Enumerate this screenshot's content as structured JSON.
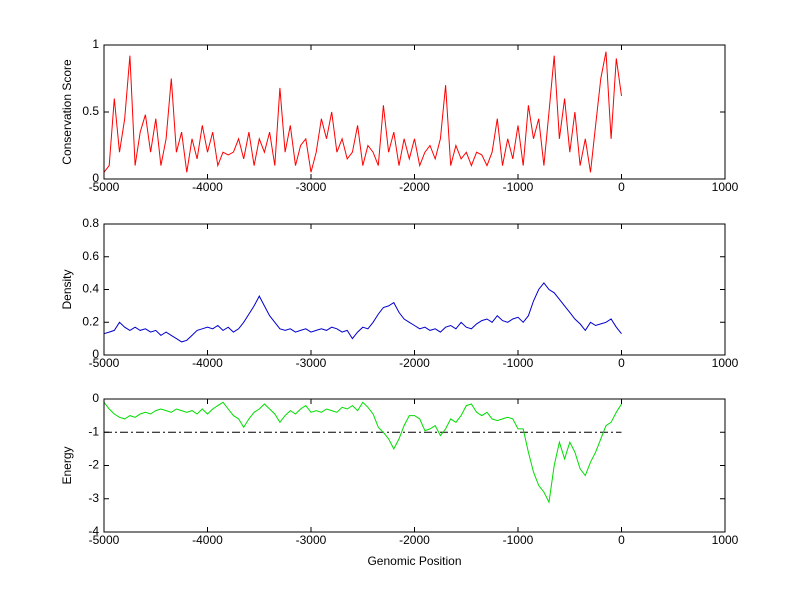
{
  "chart_data": [
    {
      "type": "line",
      "ylabel": "Conservation Score",
      "color": "#ff0000",
      "x": [
        -5000,
        -4950,
        -4900,
        -4850,
        -4800,
        -4750,
        -4700,
        -4650,
        -4600,
        -4550,
        -4500,
        -4450,
        -4400,
        -4350,
        -4300,
        -4250,
        -4200,
        -4150,
        -4100,
        -4050,
        -4000,
        -3950,
        -3900,
        -3850,
        -3800,
        -3750,
        -3700,
        -3650,
        -3600,
        -3550,
        -3500,
        -3450,
        -3400,
        -3350,
        -3300,
        -3250,
        -3200,
        -3150,
        -3100,
        -3050,
        -3000,
        -2950,
        -2900,
        -2850,
        -2800,
        -2750,
        -2700,
        -2650,
        -2600,
        -2550,
        -2500,
        -2450,
        -2400,
        -2350,
        -2300,
        -2250,
        -2200,
        -2150,
        -2100,
        -2050,
        -2000,
        -1950,
        -1900,
        -1850,
        -1800,
        -1750,
        -1700,
        -1650,
        -1600,
        -1550,
        -1500,
        -1450,
        -1400,
        -1350,
        -1300,
        -1250,
        -1200,
        -1150,
        -1100,
        -1050,
        -1000,
        -950,
        -900,
        -850,
        -800,
        -750,
        -700,
        -650,
        -600,
        -550,
        -500,
        -450,
        -400,
        -350,
        -300,
        -250,
        -200,
        -150,
        -100,
        -50,
        0
      ],
      "values": [
        0.05,
        0.1,
        0.6,
        0.2,
        0.45,
        0.92,
        0.1,
        0.35,
        0.48,
        0.2,
        0.45,
        0.1,
        0.3,
        0.75,
        0.2,
        0.35,
        0.05,
        0.3,
        0.15,
        0.4,
        0.2,
        0.35,
        0.1,
        0.2,
        0.18,
        0.2,
        0.3,
        0.15,
        0.35,
        0.1,
        0.3,
        0.2,
        0.35,
        0.1,
        0.68,
        0.2,
        0.4,
        0.1,
        0.25,
        0.3,
        0.05,
        0.2,
        0.45,
        0.3,
        0.5,
        0.2,
        0.3,
        0.15,
        0.2,
        0.4,
        0.1,
        0.25,
        0.2,
        0.1,
        0.55,
        0.2,
        0.35,
        0.1,
        0.3,
        0.15,
        0.3,
        0.1,
        0.2,
        0.25,
        0.15,
        0.3,
        0.7,
        0.1,
        0.25,
        0.15,
        0.2,
        0.1,
        0.2,
        0.18,
        0.1,
        0.2,
        0.45,
        0.1,
        0.3,
        0.15,
        0.4,
        0.1,
        0.55,
        0.3,
        0.45,
        0.1,
        0.5,
        0.92,
        0.3,
        0.6,
        0.2,
        0.5,
        0.1,
        0.3,
        0.05,
        0.4,
        0.75,
        0.95,
        0.3,
        0.9,
        0.62
      ],
      "xlim": [
        -5000,
        1000
      ],
      "xticks": [
        -5000,
        -4000,
        -3000,
        -2000,
        -1000,
        0,
        1000
      ],
      "ylim": [
        0,
        1
      ],
      "yticks": [
        0,
        0.5,
        1
      ]
    },
    {
      "type": "line",
      "ylabel": "Density",
      "color": "#0000cc",
      "x": [
        -5000,
        -4950,
        -4900,
        -4850,
        -4800,
        -4750,
        -4700,
        -4650,
        -4600,
        -4550,
        -4500,
        -4450,
        -4400,
        -4350,
        -4300,
        -4250,
        -4200,
        -4150,
        -4100,
        -4050,
        -4000,
        -3950,
        -3900,
        -3850,
        -3800,
        -3750,
        -3700,
        -3650,
        -3600,
        -3550,
        -3500,
        -3450,
        -3400,
        -3350,
        -3300,
        -3250,
        -3200,
        -3150,
        -3100,
        -3050,
        -3000,
        -2950,
        -2900,
        -2850,
        -2800,
        -2750,
        -2700,
        -2650,
        -2600,
        -2550,
        -2500,
        -2450,
        -2400,
        -2350,
        -2300,
        -2250,
        -2200,
        -2150,
        -2100,
        -2050,
        -2000,
        -1950,
        -1900,
        -1850,
        -1800,
        -1750,
        -1700,
        -1650,
        -1600,
        -1550,
        -1500,
        -1450,
        -1400,
        -1350,
        -1300,
        -1250,
        -1200,
        -1150,
        -1100,
        -1050,
        -1000,
        -950,
        -900,
        -850,
        -800,
        -750,
        -700,
        -650,
        -600,
        -550,
        -500,
        -450,
        -400,
        -350,
        -300,
        -250,
        -200,
        -150,
        -100,
        -50,
        0
      ],
      "values": [
        0.13,
        0.14,
        0.15,
        0.2,
        0.17,
        0.15,
        0.17,
        0.15,
        0.16,
        0.14,
        0.15,
        0.12,
        0.14,
        0.12,
        0.1,
        0.08,
        0.09,
        0.12,
        0.15,
        0.16,
        0.17,
        0.16,
        0.18,
        0.15,
        0.17,
        0.14,
        0.16,
        0.2,
        0.25,
        0.3,
        0.36,
        0.3,
        0.24,
        0.2,
        0.16,
        0.15,
        0.16,
        0.14,
        0.15,
        0.16,
        0.14,
        0.15,
        0.16,
        0.15,
        0.17,
        0.16,
        0.14,
        0.15,
        0.1,
        0.14,
        0.17,
        0.16,
        0.2,
        0.25,
        0.29,
        0.3,
        0.32,
        0.26,
        0.22,
        0.2,
        0.18,
        0.16,
        0.17,
        0.15,
        0.16,
        0.14,
        0.17,
        0.18,
        0.16,
        0.2,
        0.17,
        0.16,
        0.19,
        0.21,
        0.22,
        0.2,
        0.24,
        0.21,
        0.2,
        0.22,
        0.23,
        0.2,
        0.24,
        0.33,
        0.4,
        0.44,
        0.4,
        0.38,
        0.34,
        0.3,
        0.26,
        0.22,
        0.19,
        0.15,
        0.2,
        0.18,
        0.19,
        0.2,
        0.22,
        0.17,
        0.13
      ],
      "xlim": [
        -5000,
        1000
      ],
      "xticks": [
        -5000,
        -4000,
        -3000,
        -2000,
        -1000,
        0,
        1000
      ],
      "ylim": [
        0,
        0.8
      ],
      "yticks": [
        0,
        0.2,
        0.4,
        0.6,
        0.8
      ]
    },
    {
      "type": "line",
      "ylabel": "Energy",
      "xlabel": "Genomic Position",
      "color": "#00dd00",
      "x": [
        -5000,
        -4950,
        -4900,
        -4850,
        -4800,
        -4750,
        -4700,
        -4650,
        -4600,
        -4550,
        -4500,
        -4450,
        -4400,
        -4350,
        -4300,
        -4250,
        -4200,
        -4150,
        -4100,
        -4050,
        -4000,
        -3950,
        -3900,
        -3850,
        -3800,
        -3750,
        -3700,
        -3650,
        -3600,
        -3550,
        -3500,
        -3450,
        -3400,
        -3350,
        -3300,
        -3250,
        -3200,
        -3150,
        -3100,
        -3050,
        -3000,
        -2950,
        -2900,
        -2850,
        -2800,
        -2750,
        -2700,
        -2650,
        -2600,
        -2550,
        -2500,
        -2450,
        -2400,
        -2350,
        -2300,
        -2250,
        -2200,
        -2150,
        -2100,
        -2050,
        -2000,
        -1950,
        -1900,
        -1850,
        -1800,
        -1750,
        -1700,
        -1650,
        -1600,
        -1550,
        -1500,
        -1450,
        -1400,
        -1350,
        -1300,
        -1250,
        -1200,
        -1150,
        -1100,
        -1050,
        -1000,
        -950,
        -900,
        -850,
        -800,
        -750,
        -700,
        -650,
        -600,
        -550,
        -500,
        -450,
        -400,
        -350,
        -300,
        -250,
        -200,
        -150,
        -100,
        -50,
        0
      ],
      "values": [
        -0.1,
        -0.3,
        -0.45,
        -0.55,
        -0.6,
        -0.5,
        -0.55,
        -0.45,
        -0.4,
        -0.45,
        -0.35,
        -0.3,
        -0.35,
        -0.4,
        -0.3,
        -0.35,
        -0.4,
        -0.35,
        -0.45,
        -0.3,
        -0.45,
        -0.3,
        -0.2,
        -0.1,
        -0.3,
        -0.5,
        -0.6,
        -0.85,
        -0.6,
        -0.4,
        -0.3,
        -0.15,
        -0.3,
        -0.45,
        -0.7,
        -0.5,
        -0.35,
        -0.45,
        -0.3,
        -0.2,
        -0.4,
        -0.35,
        -0.4,
        -0.3,
        -0.35,
        -0.4,
        -0.25,
        -0.3,
        -0.2,
        -0.35,
        -0.1,
        -0.25,
        -0.45,
        -0.85,
        -1.0,
        -1.2,
        -1.5,
        -1.2,
        -0.8,
        -0.5,
        -0.5,
        -0.6,
        -0.95,
        -0.9,
        -0.8,
        -1.1,
        -0.9,
        -0.6,
        -0.7,
        -0.5,
        -0.2,
        -0.15,
        -0.4,
        -0.5,
        -0.4,
        -0.6,
        -0.65,
        -0.6,
        -0.55,
        -0.6,
        -0.9,
        -0.9,
        -1.6,
        -2.2,
        -2.6,
        -2.8,
        -3.1,
        -2.0,
        -1.3,
        -1.8,
        -1.3,
        -1.6,
        -2.1,
        -2.3,
        -1.9,
        -1.6,
        -1.2,
        -0.8,
        -0.7,
        -0.4,
        -0.15
      ],
      "hline": {
        "y": -1,
        "color": "#000000"
      },
      "xlim": [
        -5000,
        1000
      ],
      "xticks": [
        -5000,
        -4000,
        -3000,
        -2000,
        -1000,
        0,
        1000
      ],
      "ylim": [
        -4,
        0
      ],
      "yticks": [
        -4,
        -3,
        -2,
        -1,
        0
      ]
    }
  ]
}
